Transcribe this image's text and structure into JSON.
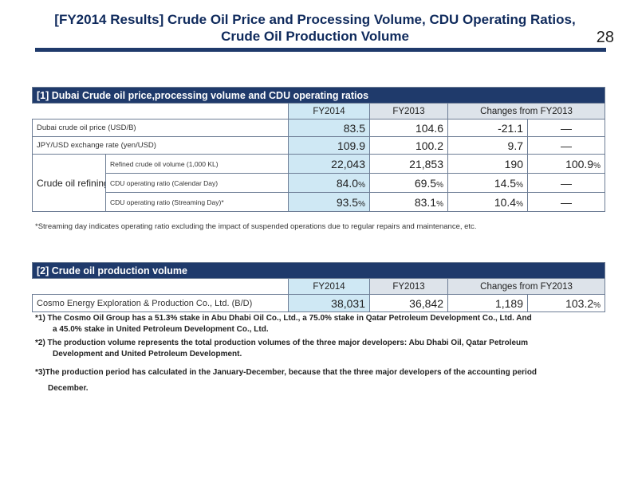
{
  "header": {
    "title_line1": "[FY2014 Results] Crude Oil Price and Processing Volume, CDU Operating Ratios,",
    "title_line2": "Crude Oil Production Volume",
    "page_number": "28"
  },
  "table1": {
    "heading": "[1] Dubai Crude oil price,processing volume and CDU operating ratios",
    "columns": [
      "FY2014",
      "FY2013",
      "Changes from FY2013"
    ],
    "rows": [
      {
        "label": "Dubai crude oil price (USD/B)",
        "fy2014": "83.5",
        "fy2013": "104.6",
        "change": "-21.1",
        "ratio": "—"
      },
      {
        "label": "JPY/USD exchange rate (yen/USD)",
        "fy2014": "109.9",
        "fy2013": "100.2",
        "change": "9.7",
        "ratio": "—"
      }
    ],
    "group_label": "Crude oil refining",
    "group_rows": [
      {
        "label": "Refined crude oil volume (1,000 KL)",
        "fy2014": "22,043",
        "fy2013": "21,853",
        "change": "190",
        "ratio": "100.9",
        "ratio_unit": "%"
      },
      {
        "label": "CDU operating ratio (Calendar Day)",
        "fy2014": "84.0",
        "fy2014_unit": "%",
        "fy2013": "69.5",
        "fy2013_unit": "%",
        "change": "14.5",
        "change_unit": "%",
        "ratio": "—"
      },
      {
        "label": "CDU operating ratio (Streaming Day)*",
        "fy2014": "93.5",
        "fy2014_unit": "%",
        "fy2013": "83.1",
        "fy2013_unit": "%",
        "change": "10.4",
        "change_unit": "%",
        "ratio": "—"
      }
    ],
    "footnote": "*Streaming day indicates operating ratio excluding the impact of suspended operations due to regular repairs and maintenance, etc."
  },
  "table2": {
    "heading": "[2] Crude oil production volume",
    "columns": [
      "FY2014",
      "FY2013",
      "Changes from FY2013"
    ],
    "row": {
      "label": "Cosmo Energy Exploration & Production Co., Ltd. (B/D)",
      "fy2014": "38,031",
      "fy2013": "36,842",
      "change": "1,189",
      "ratio": "103.2",
      "ratio_unit": "%"
    }
  },
  "notes": {
    "n1_line1": "*1) The Cosmo Oil Group has a 51.3% stake in Abu Dhabi Oil Co., Ltd., a 75.0% stake in Qatar Petroleum Development Co., Ltd. And",
    "n1_line2": "a 45.0% stake in United Petroleum Development Co., Ltd.",
    "n2_line1": "*2) The production volume represents the total production volumes of the three major developers: Abu Dhabi Oil, Qatar Petroleum",
    "n2_line2": "Development and United Petroleum Development.",
    "n3_line1": "*3)The production period has calculated in the January-December, because that the three major developers of the accounting period",
    "n3_line2": "December."
  }
}
